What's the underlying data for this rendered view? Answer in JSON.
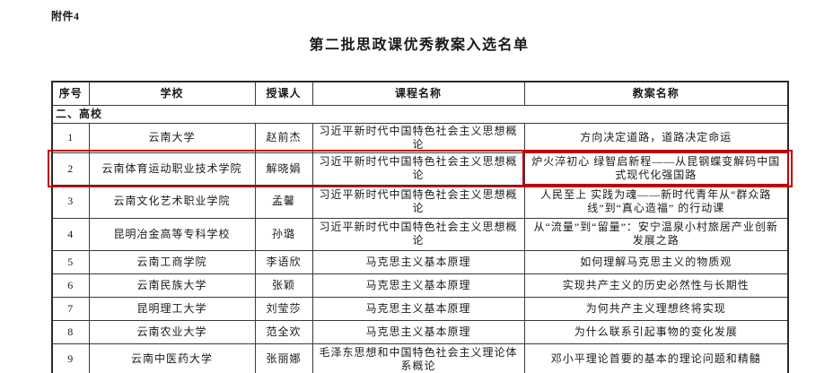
{
  "attachment_label": "附件4",
  "title": "第二批思政课优秀教案入选名单",
  "table": {
    "headers": [
      "序号",
      "学校",
      "授课人",
      "课程名称",
      "教案名称"
    ],
    "section_label": "二、高校",
    "rows": [
      {
        "no": "1",
        "school": "云南大学",
        "teacher": "赵前杰",
        "course": "习近平新时代中国特色社会主义思想概论",
        "plan": "方向决定道路，道路决定命运"
      },
      {
        "no": "2",
        "school": "云南体育运动职业技术学院",
        "teacher": "解晓娟",
        "course": "习近平新时代中国特色社会主义思想概论",
        "plan": "炉火淬初心 绿智启新程——从昆钢蝶变解码中国式现代化强国路"
      },
      {
        "no": "3",
        "school": "云南文化艺术职业学院",
        "teacher": "孟馨",
        "course": "习近平新时代中国特色社会主义思想概论",
        "plan": "人民至上 实践为魂——新时代青年从“群众路线”到“真心造福” 的行动课"
      },
      {
        "no": "4",
        "school": "昆明冶金高等专科学校",
        "teacher": "孙璐",
        "course": "习近平新时代中国特色社会主义思想概论",
        "plan": "从“流量”到“留量”：安宁温泉小村旅居产业创新发展之路"
      },
      {
        "no": "5",
        "school": "云南工商学院",
        "teacher": "李语欣",
        "course": "马克思主义基本原理",
        "plan": "如何理解马克思主义的物质观"
      },
      {
        "no": "6",
        "school": "云南民族大学",
        "teacher": "张颖",
        "course": "马克思主义基本原理",
        "plan": "实现共产主义的历史必然性与长期性"
      },
      {
        "no": "7",
        "school": "昆明理工大学",
        "teacher": "刘莹莎",
        "course": "马克思主义基本原理",
        "plan": "为何共产主义理想终将实现"
      },
      {
        "no": "8",
        "school": "云南农业大学",
        "teacher": "范全欢",
        "course": "马克思主义基本原理",
        "plan": "为什么联系引起事物的变化发展"
      },
      {
        "no": "9",
        "school": "云南中医药大学",
        "teacher": "张丽娜",
        "course": "毛泽东思想和中国特色社会主义理论体系概论",
        "plan": "邓小平理论首要的基本的理论问题和精髓"
      }
    ]
  },
  "annotation": {
    "highlight_color": "#c00000"
  }
}
